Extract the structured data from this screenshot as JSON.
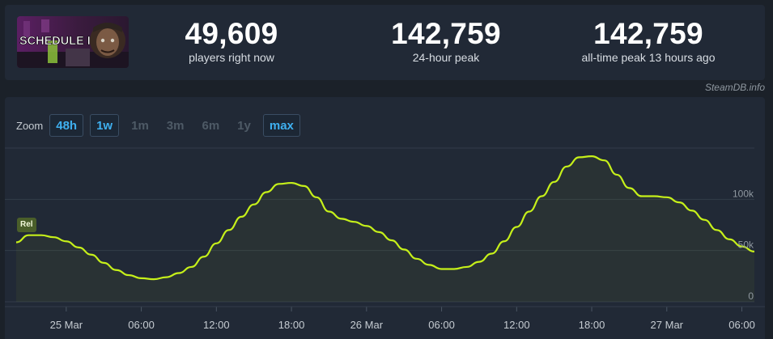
{
  "game": {
    "thumbnail_title": "SCHEDULE I"
  },
  "stats": [
    {
      "value": "49,609",
      "label": "players right now"
    },
    {
      "value": "142,759",
      "label": "24-hour peak"
    },
    {
      "value": "142,759",
      "label": "all-time peak 13 hours ago"
    }
  ],
  "credit": "SteamDB.info",
  "zoom": {
    "label": "Zoom",
    "options": [
      {
        "label": "48h",
        "active": true
      },
      {
        "label": "1w",
        "active": true
      },
      {
        "label": "1m",
        "active": false
      },
      {
        "label": "3m",
        "active": false
      },
      {
        "label": "6m",
        "active": false
      },
      {
        "label": "1y",
        "active": false
      },
      {
        "label": "max",
        "active": true
      }
    ]
  },
  "event_badge": "Rel",
  "colors": {
    "line": "#c6f01a",
    "accent": "#3fb0f0",
    "panel": "#212936",
    "background": "#1b2129"
  },
  "chart_data": {
    "type": "line",
    "series": [
      {
        "x": [
          0,
          1,
          2,
          3,
          4,
          5,
          6,
          7,
          8,
          9,
          10,
          11,
          12,
          13,
          14,
          15,
          16,
          17,
          18,
          19,
          20,
          21,
          22,
          23,
          24,
          25,
          26,
          27,
          28,
          29,
          30,
          31,
          32,
          33,
          34,
          35,
          36,
          37,
          38,
          39,
          40,
          41,
          42,
          43,
          44,
          45,
          46,
          47,
          48,
          49,
          50,
          51,
          52,
          53,
          54,
          55,
          56,
          57,
          58,
          59
        ],
        "y": [
          58000,
          65000,
          65000,
          63000,
          59000,
          53000,
          46000,
          38000,
          31000,
          26000,
          23000,
          22000,
          24000,
          28000,
          34000,
          44000,
          57000,
          70000,
          83000,
          95000,
          107000,
          115000,
          116000,
          113000,
          102000,
          88000,
          81000,
          78000,
          74000,
          68000,
          60000,
          51000,
          42000,
          36000,
          32000,
          32000,
          34000,
          39000,
          47000,
          59000,
          73000,
          88000,
          103000,
          117000,
          132000,
          141000,
          142000,
          138000,
          124000,
          111000,
          103000,
          103000,
          102000,
          97000,
          89000,
          80000,
          70000,
          61000,
          54000,
          49000
        ]
      }
    ],
    "x_tick_labels": [
      "25 Mar",
      "06:00",
      "12:00",
      "18:00",
      "26 Mar",
      "06:00",
      "12:00",
      "18:00",
      "27 Mar",
      "06:00"
    ],
    "x_tick_positions": [
      4,
      10,
      16,
      22,
      28,
      34,
      40,
      46,
      52,
      58
    ],
    "y_ticks": [
      0,
      50000,
      100000
    ],
    "y_tick_labels": [
      "0",
      "50k",
      "100k"
    ],
    "xlim": [
      0,
      59
    ],
    "ylim": [
      0,
      150000
    ],
    "grid": true
  }
}
